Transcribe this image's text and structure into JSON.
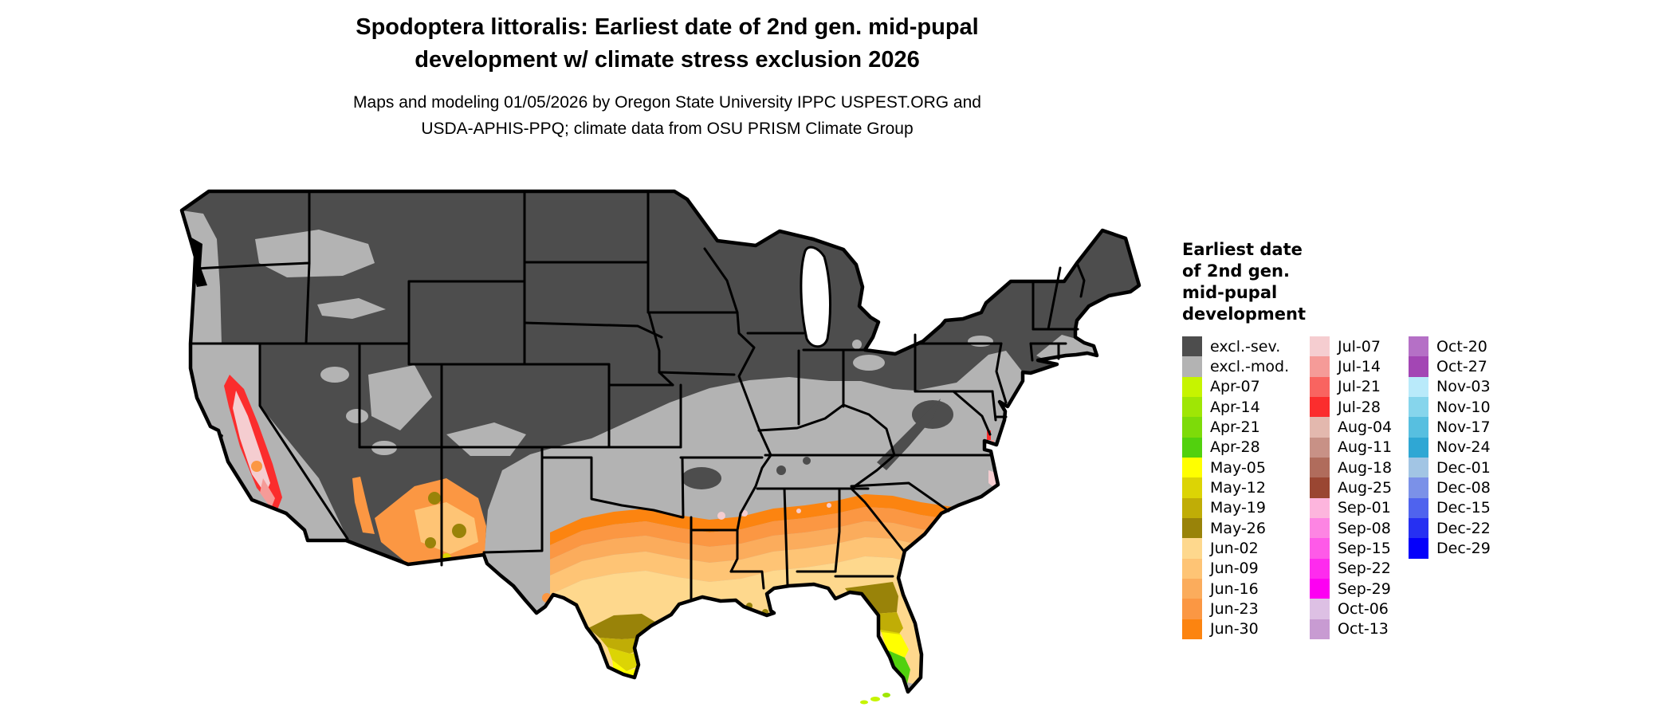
{
  "title": {
    "line1": "Spodoptera littoralis: Earliest date of 2nd gen. mid-pupal",
    "line2": "development w/ climate stress exclusion 2026"
  },
  "subtitle": {
    "line1": "Maps and modeling 01/05/2026 by Oregon State University IPPC USPEST.ORG and",
    "line2": "USDA-APHIS-PPQ; climate data from OSU PRISM Climate Group"
  },
  "legend": {
    "title_lines": [
      "Earliest date",
      "of 2nd gen.",
      "mid-pupal",
      "development"
    ],
    "columns": [
      {
        "items": [
          {
            "label": "excl.-sev.",
            "color": "#4d4d4d"
          },
          {
            "label": "excl.-mod.",
            "color": "#b3b3b3"
          },
          {
            "label": "Apr-07",
            "color": "#c6f400"
          },
          {
            "label": "Apr-14",
            "color": "#9fe605"
          },
          {
            "label": "Apr-21",
            "color": "#7ddb09"
          },
          {
            "label": "Apr-28",
            "color": "#52d10e"
          },
          {
            "label": "May-05",
            "color": "#ffff00"
          },
          {
            "label": "May-12",
            "color": "#dcd405"
          },
          {
            "label": "May-19",
            "color": "#c0ad06"
          },
          {
            "label": "May-26",
            "color": "#998309"
          },
          {
            "label": "Jun-02",
            "color": "#fed88d"
          },
          {
            "label": "Jun-09",
            "color": "#fec475"
          },
          {
            "label": "Jun-16",
            "color": "#fbac5c"
          },
          {
            "label": "Jun-23",
            "color": "#fb9743"
          },
          {
            "label": "Jun-30",
            "color": "#fc8410"
          }
        ]
      },
      {
        "items": [
          {
            "label": "Jul-07",
            "color": "#f5cdd0"
          },
          {
            "label": "Jul-14",
            "color": "#f59b98"
          },
          {
            "label": "Jul-21",
            "color": "#f96460"
          },
          {
            "label": "Jul-28",
            "color": "#fb2d2d"
          },
          {
            "label": "Aug-04",
            "color": "#e3b8ae"
          },
          {
            "label": "Aug-11",
            "color": "#c89186"
          },
          {
            "label": "Aug-18",
            "color": "#b06c5c"
          },
          {
            "label": "Aug-25",
            "color": "#9a4632"
          },
          {
            "label": "Sep-01",
            "color": "#fdb5dd"
          },
          {
            "label": "Sep-08",
            "color": "#fd85e3"
          },
          {
            "label": "Sep-15",
            "color": "#fe5ae8"
          },
          {
            "label": "Sep-22",
            "color": "#fe2bee"
          },
          {
            "label": "Sep-29",
            "color": "#fd00f2"
          },
          {
            "label": "Oct-06",
            "color": "#ddc0e4"
          },
          {
            "label": "Oct-13",
            "color": "#c89bd2"
          }
        ]
      },
      {
        "items": [
          {
            "label": "Oct-20",
            "color": "#b570c6"
          },
          {
            "label": "Oct-27",
            "color": "#a346b4"
          },
          {
            "label": "Nov-03",
            "color": "#b9eafa"
          },
          {
            "label": "Nov-10",
            "color": "#86d5ec"
          },
          {
            "label": "Nov-17",
            "color": "#57bfe0"
          },
          {
            "label": "Nov-24",
            "color": "#2fa7d4"
          },
          {
            "label": "Dec-01",
            "color": "#a2c5e4"
          },
          {
            "label": "Dec-08",
            "color": "#7b91e8"
          },
          {
            "label": "Dec-15",
            "color": "#4f63ee"
          },
          {
            "label": "Dec-22",
            "color": "#2630f2"
          },
          {
            "label": "Dec-29",
            "color": "#0500fa"
          }
        ]
      }
    ]
  },
  "map_colors": {
    "excluded_severe": "#4d4d4d",
    "excluded_moderate": "#b3b3b3",
    "border": "#000000",
    "water": "#ffffff"
  }
}
